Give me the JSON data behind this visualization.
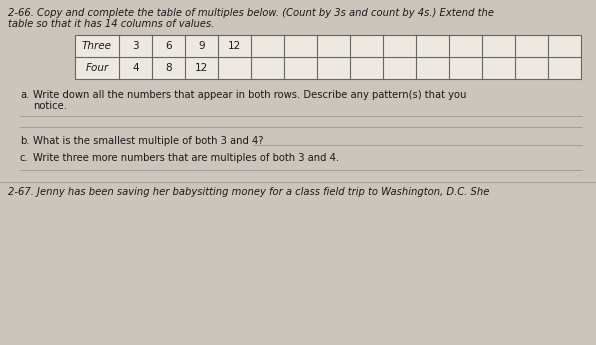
{
  "title_line1": "2-66. Copy and complete the table of multiples below. (Count by 3s and count by 4s.) Extend the",
  "title_line2": "table so that it has 14 columns of values.",
  "row_labels": [
    "Three",
    "Four"
  ],
  "row1_values": [
    "3",
    "6",
    "9",
    "12",
    "",
    "",
    "",
    "",
    "",
    "",
    "",
    "",
    "",
    ""
  ],
  "row2_values": [
    "4",
    "8",
    "12",
    "",
    "",
    "",
    "",
    "",
    "",
    "",
    "",
    "",
    "",
    ""
  ],
  "num_data_cols": 14,
  "part_a_label": "a.",
  "part_a_text": "Write down all the numbers that appear in both rows. Describe any pattern(s) that you",
  "part_a_text2": "notice.",
  "part_b_label": "b.",
  "part_b_text": "What is the smallest multiple of both 3 and 4?",
  "part_c_label": "c.",
  "part_c_text": "Write three more numbers that are multiples of both 3 and 4.",
  "footer_text": "2-67. Jenny has been saving her babysitting money for a class field trip to Washington, D.C. She",
  "bg_color": "#ccc5bc",
  "table_bg": "#ede8e0",
  "line_color": "#666666",
  "text_color": "#1a1a1a",
  "title_font_size": 7.2,
  "label_font_size": 7.5,
  "body_font_size": 7.2
}
